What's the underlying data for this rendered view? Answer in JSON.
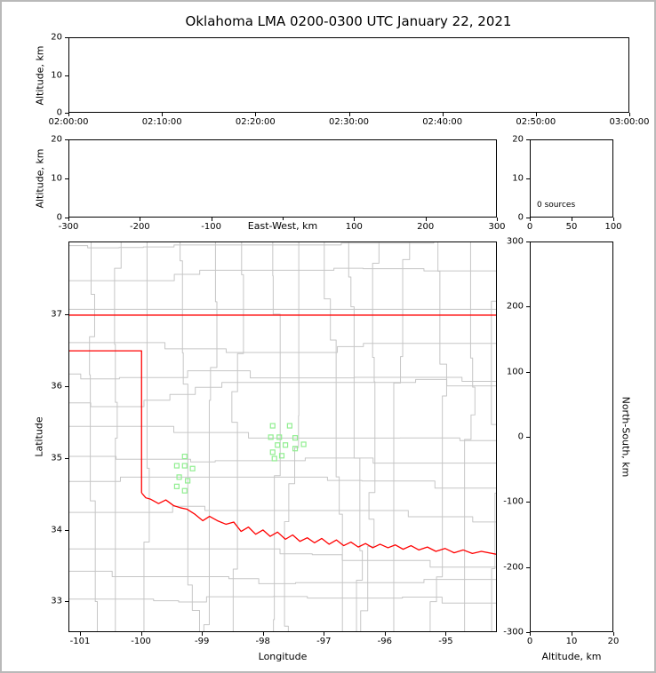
{
  "title": "Oklahoma LMA 0200-0300 UTC January 22, 2021",
  "colors": {
    "state_border": "#ff0000",
    "county_line": "#c6c6c6",
    "station_marker": "#90ee90",
    "axis": "#000000",
    "frame": "#b9b9b9"
  },
  "panels": {
    "time_altitude": {
      "ylabel": "Altitude, km",
      "yticks": [
        0,
        10,
        20
      ],
      "xticks": [
        "02:00:00",
        "02:10:00",
        "02:20:00",
        "02:30:00",
        "02:40:00",
        "02:50:00",
        "03:00:00"
      ]
    },
    "ew_altitude": {
      "ylabel": "Altitude, km",
      "xlabel": "East-West, km",
      "yticks": [
        0,
        10,
        20
      ],
      "xticks": [
        -300,
        -200,
        -100,
        0,
        100,
        200,
        300
      ]
    },
    "histogram": {
      "yticks": [
        0,
        10,
        20
      ],
      "xticks": [
        0,
        50,
        100
      ],
      "annotation": "0 sources"
    },
    "map": {
      "xlabel": "Longitude",
      "ylabel": "Latitude",
      "xticks": [
        -101,
        -100,
        -99,
        -98,
        -97,
        -96,
        -95
      ],
      "yticks": [
        33,
        34,
        35,
        36,
        37
      ]
    },
    "ns_altitude": {
      "xlabel": "Altitude, km",
      "ylabel": "North-South, km",
      "xticks": [
        0,
        10,
        20
      ],
      "yticks": [
        -300,
        -200,
        -100,
        0,
        100,
        200,
        300
      ]
    }
  },
  "chart_data": {
    "type": "scatter",
    "title": "Oklahoma LMA 0200-0300 UTC January 22, 2021",
    "time_range_utc": [
      "02:00:00",
      "03:00:00"
    ],
    "altitude_range_km": [
      0,
      20
    ],
    "east_west_range_km": [
      -300,
      300
    ],
    "north_south_range_km": [
      -300,
      300
    ],
    "histogram_sources_range": [
      0,
      100
    ],
    "source_count": 0,
    "lightning_sources": [],
    "map_bounds": {
      "lon": [
        -101.19,
        -94.16
      ],
      "lat": [
        32.57,
        38.02
      ]
    },
    "lma_stations_lonlat": [
      [
        -97.84,
        35.45
      ],
      [
        -97.56,
        35.45
      ],
      [
        -97.87,
        35.29
      ],
      [
        -97.73,
        35.29
      ],
      [
        -97.47,
        35.28
      ],
      [
        -97.76,
        35.18
      ],
      [
        -97.63,
        35.18
      ],
      [
        -97.84,
        35.08
      ],
      [
        -97.47,
        35.13
      ],
      [
        -97.33,
        35.19
      ],
      [
        -97.69,
        35.03
      ],
      [
        -97.81,
        34.99
      ],
      [
        -99.29,
        35.02
      ],
      [
        -99.42,
        34.89
      ],
      [
        -99.29,
        34.89
      ],
      [
        -99.16,
        34.85
      ],
      [
        -99.38,
        34.73
      ],
      [
        -99.24,
        34.68
      ],
      [
        -99.42,
        34.6
      ],
      [
        -99.29,
        34.54
      ]
    ],
    "state_border_lonlat": [
      [
        [
          -101.19,
          37.0
        ],
        [
          -94.16,
          37.0
        ]
      ],
      [
        [
          -101.19,
          36.5
        ],
        [
          -100.0,
          36.5
        ],
        [
          -100.0,
          34.51
        ]
      ],
      [
        [
          -100.0,
          34.51
        ],
        [
          -99.93,
          34.44
        ],
        [
          -99.85,
          34.42
        ],
        [
          -99.72,
          34.36
        ],
        [
          -99.6,
          34.41
        ],
        [
          -99.47,
          34.33
        ],
        [
          -99.36,
          34.3
        ],
        [
          -99.25,
          34.28
        ],
        [
          -99.12,
          34.21
        ],
        [
          -98.99,
          34.12
        ],
        [
          -98.88,
          34.18
        ],
        [
          -98.75,
          34.12
        ],
        [
          -98.61,
          34.07
        ],
        [
          -98.48,
          34.1
        ],
        [
          -98.36,
          33.97
        ],
        [
          -98.24,
          34.03
        ],
        [
          -98.12,
          33.93
        ],
        [
          -98.0,
          33.99
        ],
        [
          -97.88,
          33.9
        ],
        [
          -97.76,
          33.96
        ],
        [
          -97.63,
          33.86
        ],
        [
          -97.51,
          33.92
        ],
        [
          -97.39,
          33.83
        ],
        [
          -97.27,
          33.88
        ],
        [
          -97.15,
          33.81
        ],
        [
          -97.03,
          33.87
        ],
        [
          -96.91,
          33.79
        ],
        [
          -96.79,
          33.85
        ],
        [
          -96.67,
          33.77
        ],
        [
          -96.55,
          33.82
        ],
        [
          -96.43,
          33.75
        ],
        [
          -96.31,
          33.8
        ],
        [
          -96.19,
          33.74
        ],
        [
          -96.07,
          33.79
        ],
        [
          -95.94,
          33.74
        ],
        [
          -95.82,
          33.78
        ],
        [
          -95.69,
          33.72
        ],
        [
          -95.56,
          33.77
        ],
        [
          -95.43,
          33.71
        ],
        [
          -95.29,
          33.75
        ],
        [
          -95.15,
          33.69
        ],
        [
          -95.0,
          33.73
        ],
        [
          -94.85,
          33.67
        ],
        [
          -94.7,
          33.71
        ],
        [
          -94.55,
          33.66
        ],
        [
          -94.4,
          33.69
        ],
        [
          -94.16,
          33.65
        ]
      ]
    ]
  }
}
